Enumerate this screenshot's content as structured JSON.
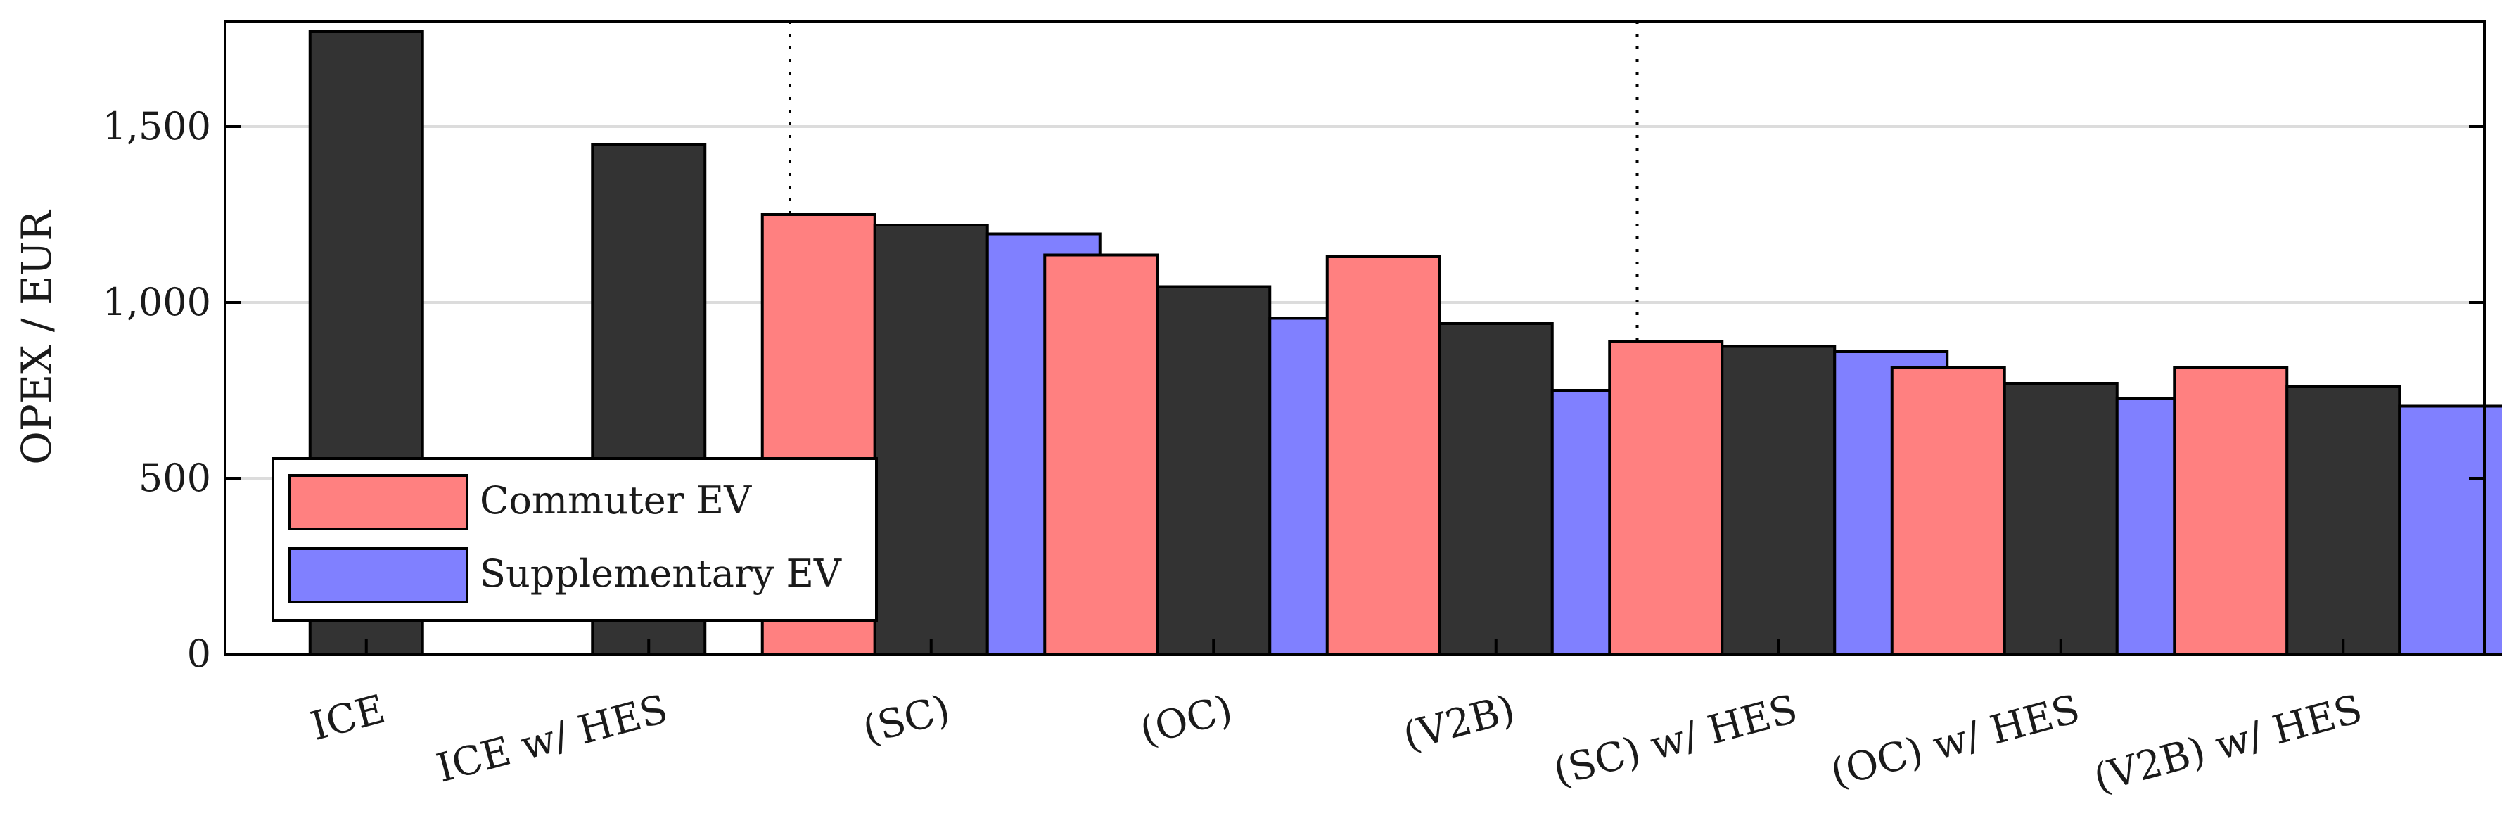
{
  "chart_data": {
    "type": "bar",
    "title": "",
    "xlabel": "",
    "ylabel": "OPEX / EUR",
    "ylim": [
      0,
      1800
    ],
    "yticks": [
      0,
      500,
      1000,
      1500
    ],
    "ytick_labels": [
      "0",
      "500",
      "1,000",
      "1,500"
    ],
    "grid": "horizontal",
    "legend_position": "bottom-left",
    "categories": [
      "ICE",
      "ICE w/ HES",
      "(SC)",
      "(OC)",
      "(V2B)",
      "(SC) w/ HES",
      "(OC) w/ HES",
      "(V2B) w/ HES"
    ],
    "group_separators_after": [
      1,
      4
    ],
    "series": [
      {
        "name": "Commuter EV",
        "color": "#ff8080",
        "values": [
          null,
          null,
          1250,
          1135,
          1130,
          890,
          815,
          815
        ]
      },
      {
        "name": "",
        "color": "#333333",
        "values": [
          1770,
          1450,
          1220,
          1045,
          940,
          875,
          770,
          760
        ]
      },
      {
        "name": "Supplementary EV",
        "color": "#8080ff",
        "values": [
          null,
          null,
          1195,
          955,
          750,
          860,
          728,
          705
        ]
      }
    ]
  }
}
